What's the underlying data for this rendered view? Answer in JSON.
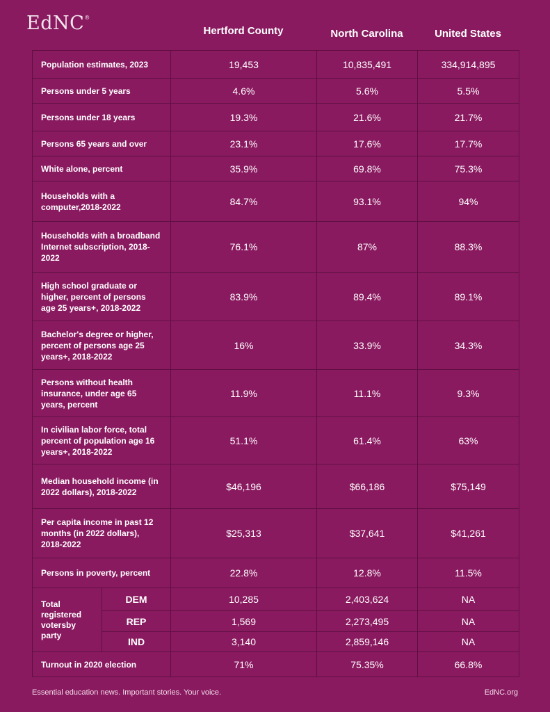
{
  "brand": {
    "logo": "EdNC"
  },
  "columns": [
    "Hertford County",
    "North Carolina",
    "United States"
  ],
  "rows": [
    {
      "label": "Population estimates, 2023",
      "values": [
        "19,453",
        "10,835,491",
        "334,914,895"
      ]
    },
    {
      "label": "Persons under 5 years",
      "values": [
        "4.6%",
        "5.6%",
        "5.5%"
      ]
    },
    {
      "label": "Persons under 18 years",
      "values": [
        "19.3%",
        "21.6%",
        "21.7%"
      ]
    },
    {
      "label": "Persons 65 years and over",
      "values": [
        "23.1%",
        "17.6%",
        "17.7%"
      ]
    },
    {
      "label": "White alone, percent",
      "values": [
        "35.9%",
        "69.8%",
        "75.3%"
      ]
    },
    {
      "label": "Households with a computer,2018-2022",
      "values": [
        "84.7%",
        "93.1%",
        "94%"
      ]
    },
    {
      "label": "Households with a broadband Internet subscription, 2018-2022",
      "values": [
        "76.1%",
        "87%",
        "88.3%"
      ]
    },
    {
      "label": "High school graduate or higher, percent of persons age 25 years+, 2018-2022",
      "values": [
        "83.9%",
        "89.4%",
        "89.1%"
      ]
    },
    {
      "label": "Bachelor's degree or higher, percent of persons age 25 years+, 2018-2022",
      "values": [
        "16%",
        "33.9%",
        "34.3%"
      ]
    },
    {
      "label": "Persons without health insurance, under age 65 years, percent",
      "values": [
        "11.9%",
        "11.1%",
        "9.3%"
      ]
    },
    {
      "label": "In civilian labor force, total percent of population age 16 years+, 2018-2022",
      "values": [
        "51.1%",
        "61.4%",
        "63%"
      ]
    },
    {
      "label": "Median household income (in 2022 dollars), 2018-2022",
      "values": [
        "$46,196",
        "$66,186",
        "$75,149"
      ]
    },
    {
      "label": "Per capita income in past 12 months (in 2022 dollars), 2018-2022",
      "values": [
        "$25,313",
        "$37,641",
        "$41,261"
      ]
    },
    {
      "label": "Persons in poverty, percent",
      "values": [
        "22.8%",
        "12.8%",
        "11.5%"
      ]
    }
  ],
  "registration": {
    "label": "Total registered votersby party",
    "parties": [
      {
        "name": "DEM",
        "values": [
          "10,285",
          "2,403,624",
          "NA"
        ]
      },
      {
        "name": "REP",
        "values": [
          "1,569",
          "2,273,495",
          "NA"
        ]
      },
      {
        "name": "IND",
        "values": [
          "3,140",
          "2,859,146",
          "NA"
        ]
      }
    ]
  },
  "turnout": {
    "label": "Turnout in 2020 election",
    "values": [
      "71%",
      "75.35%",
      "66.8%"
    ]
  },
  "footer": {
    "tagline": "Essential education news. Important stories. Your voice.",
    "site": "EdNC.org"
  }
}
